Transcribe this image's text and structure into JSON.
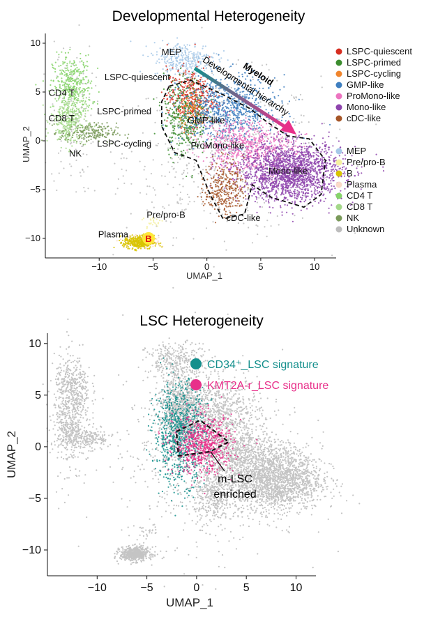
{
  "colors": {
    "LSPC-quiescent": "#d62d20",
    "LSPC-primed": "#3c8d2f",
    "LSPC-cycling": "#f0852d",
    "GMP-like": "#3f7fc0",
    "ProMono-like": "#ec74c0",
    "Mono-like": "#8e44ad",
    "cDC-like": "#a65628",
    "MEP": "#a6c8e8",
    "Pre/pro-B": "#f5f0a0",
    "B": "#d8c400",
    "Plasma": "#fbd9c8",
    "CD4 T": "#86d46a",
    "CD8 T": "#a4d88a",
    "NK": "#7a9a5a",
    "Unknown": "#bdbdbd",
    "teal": "#148f8c",
    "magenta": "#e8308a",
    "arrow_start": "#148f8c",
    "arrow_end": "#e8308a",
    "b_highlight": "#ffe83a",
    "b_label": "#e01010"
  },
  "chart_data": [
    {
      "type": "scatter",
      "title": "Developmental Heterogeneity",
      "xlabel": "UMAP_1",
      "ylabel": "UMAP_2",
      "xlim": [
        -15,
        12
      ],
      "ylim": [
        -12,
        11
      ],
      "xticks": [
        -10,
        -5,
        0,
        5,
        10
      ],
      "yticks": [
        10,
        5,
        0,
        -5,
        -10
      ],
      "legend_myeloid": [
        "LSPC-quiescent",
        "LSPC-primed",
        "LSPC-cycling",
        "GMP-like",
        "ProMono-like",
        "Mono-like",
        "cDC-like"
      ],
      "legend_other": [
        "MEP",
        "Pre/pro-B",
        "B",
        "Plasma",
        "CD4 T",
        "CD8 T",
        "NK",
        "Unknown"
      ],
      "clusters": [
        {
          "name": "Unknown",
          "cx": 1.5,
          "cy": -1.5,
          "sx": 4.5,
          "sy": 4.0,
          "n": 700,
          "tilt": 0
        },
        {
          "name": "Unknown",
          "cx": -12.5,
          "cy": 2.5,
          "sx": 1.0,
          "sy": 4.0,
          "n": 120,
          "tilt": 0
        },
        {
          "name": "CD4 T",
          "cx": -12.5,
          "cy": 5.5,
          "sx": 0.9,
          "sy": 1.6,
          "n": 380,
          "tilt": 0
        },
        {
          "name": "CD8 T",
          "cx": -12.8,
          "cy": 2.0,
          "sx": 0.8,
          "sy": 1.3,
          "n": 280,
          "tilt": 0
        },
        {
          "name": "NK",
          "cx": -11.0,
          "cy": 0.8,
          "sx": 1.3,
          "sy": 0.5,
          "n": 200,
          "tilt": 0
        },
        {
          "name": "MEP",
          "cx": -2.0,
          "cy": 8.3,
          "sx": 1.5,
          "sy": 0.9,
          "n": 320,
          "tilt": 0
        },
        {
          "name": "LSPC-quiescent",
          "cx": -1.5,
          "cy": 4.5,
          "sx": 1.1,
          "sy": 1.5,
          "n": 380,
          "tilt": 0
        },
        {
          "name": "LSPC-primed",
          "cx": -2.0,
          "cy": 2.5,
          "sx": 1.0,
          "sy": 2.0,
          "n": 380,
          "tilt": 0
        },
        {
          "name": "LSPC-cycling",
          "cx": -1.3,
          "cy": 3.2,
          "sx": 0.6,
          "sy": 1.0,
          "n": 90,
          "tilt": 0
        },
        {
          "name": "GMP-like",
          "cx": 2.0,
          "cy": 3.2,
          "sx": 2.2,
          "sy": 1.7,
          "n": 800,
          "tilt": 0
        },
        {
          "name": "ProMono-like",
          "cx": 3.8,
          "cy": -0.6,
          "sx": 2.2,
          "sy": 1.3,
          "n": 650,
          "tilt": -0.2
        },
        {
          "name": "Mono-like",
          "cx": 7.8,
          "cy": -3.2,
          "sx": 2.4,
          "sy": 1.5,
          "n": 1800,
          "tilt": 0
        },
        {
          "name": "cDC-like",
          "cx": 1.6,
          "cy": -4.8,
          "sx": 0.9,
          "sy": 1.4,
          "n": 300,
          "tilt": 0
        },
        {
          "name": "Plasma",
          "cx": -6.0,
          "cy": -10.3,
          "sx": 0.8,
          "sy": 0.3,
          "n": 180,
          "tilt": 0
        },
        {
          "name": "B",
          "cx": -6.3,
          "cy": -10.4,
          "sx": 0.7,
          "sy": 0.35,
          "n": 380,
          "tilt": 0
        },
        {
          "name": "Pre/pro-B",
          "cx": -5.0,
          "cy": -8.3,
          "sx": 0.5,
          "sy": 0.4,
          "n": 25,
          "tilt": 0
        }
      ],
      "labels": [
        {
          "text": "MEP",
          "x": -4.2,
          "y": 8.8
        },
        {
          "text": "LSPC-quiescent",
          "x": -9.5,
          "y": 6.2
        },
        {
          "text": "CD4 T",
          "x": -14.7,
          "y": 4.6
        },
        {
          "text": "CD8 T",
          "x": -14.7,
          "y": 2.0
        },
        {
          "text": "LSPC-primed",
          "x": -10.2,
          "y": 2.7
        },
        {
          "text": "NK",
          "x": -12.8,
          "y": -1.6
        },
        {
          "text": "LSPC-cycling",
          "x": -10.2,
          "y": -0.6
        },
        {
          "text": "GMP-like",
          "x": -1.8,
          "y": 1.8
        },
        {
          "text": "ProMono-like",
          "x": -1.5,
          "y": -0.8
        },
        {
          "text": "Mono-like",
          "x": 5.7,
          "y": -3.4
        },
        {
          "text": "cDC-like",
          "x": 1.8,
          "y": -8.2
        },
        {
          "text": "Pre/pro-B",
          "x": -5.6,
          "y": -7.9
        },
        {
          "text": "Plasma",
          "x": -10.1,
          "y": -9.9
        }
      ],
      "arrow": {
        "title": "Myeloid",
        "subtitle": "Developmental hierarchy"
      },
      "b_marker": "B"
    },
    {
      "type": "scatter",
      "title": "LSC Heterogeneity",
      "xlabel": "UMAP_1",
      "ylabel": "UMAP_2",
      "xlim": [
        -15,
        12
      ],
      "ylim": [
        -12.5,
        11
      ],
      "xticks": [
        -10,
        -5,
        0,
        5,
        10
      ],
      "yticks": [
        10,
        5,
        0,
        -5,
        -10
      ],
      "legend": [
        "CD34⁺_LSC signature",
        "KMT2A-r_LSC signature"
      ],
      "annotation": [
        "m-LSC",
        "enriched"
      ],
      "clusters": [
        {
          "name": "CD34_LSC",
          "cx": -1.7,
          "cy": 1.3,
          "sx": 1.3,
          "sy": 2.4,
          "n": 800,
          "tilt": 0
        },
        {
          "name": "KMT2A_LSC",
          "cx": 0.7,
          "cy": 0.2,
          "sx": 1.5,
          "sy": 1.4,
          "n": 650,
          "tilt": 0
        }
      ]
    }
  ]
}
